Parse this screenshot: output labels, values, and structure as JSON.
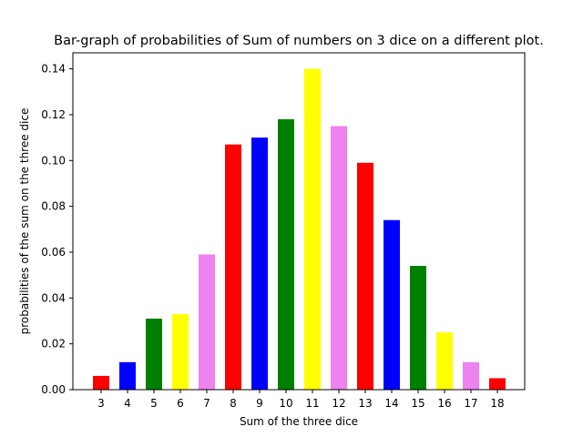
{
  "chart_data": {
    "type": "bar",
    "title": "Bar-graph of probabilities of Sum of numbers on 3 dice on a different plot.",
    "xlabel": "Sum of the three dice",
    "ylabel": "probabilities of the sum on the three dice",
    "categories": [
      "3",
      "4",
      "5",
      "6",
      "7",
      "8",
      "9",
      "10",
      "11",
      "12",
      "13",
      "14",
      "15",
      "16",
      "17",
      "18"
    ],
    "values": [
      0.006,
      0.012,
      0.031,
      0.033,
      0.059,
      0.107,
      0.11,
      0.118,
      0.14,
      0.115,
      0.099,
      0.074,
      0.054,
      0.025,
      0.012,
      0.005
    ],
    "bar_colors": [
      "#ff0000",
      "#0000ff",
      "#008000",
      "#ffff00",
      "#ee82ee",
      "#ff0000",
      "#0000ff",
      "#008000",
      "#ffff00",
      "#ee82ee",
      "#ff0000",
      "#0000ff",
      "#008000",
      "#ffff00",
      "#ee82ee",
      "#ff0000"
    ],
    "yticks": [
      "0.00",
      "0.02",
      "0.04",
      "0.06",
      "0.08",
      "0.10",
      "0.12",
      "0.14"
    ],
    "ylim": [
      0,
      0.147
    ],
    "grid": false,
    "legend": "none"
  }
}
